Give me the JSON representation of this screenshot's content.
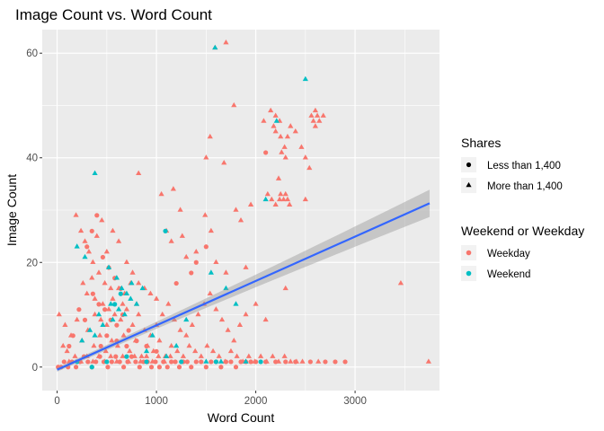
{
  "chart_data": {
    "type": "scatter",
    "title": "Image Count vs. Word Count",
    "xlabel": "Word Count",
    "ylabel": "Image Count",
    "xlim": [
      -150,
      3850
    ],
    "ylim": [
      -4.5,
      64.5
    ],
    "x_ticks": [
      0,
      1000,
      2000,
      3000
    ],
    "y_ticks": [
      0,
      20,
      40,
      60
    ],
    "x_tick_labels": [
      "0",
      "1000",
      "2000",
      "3000"
    ],
    "y_tick_labels": [
      "0",
      "20",
      "40",
      "60"
    ],
    "grid": true,
    "legend_position": "right",
    "colors": {
      "Weekday": "#F8766D",
      "Weekend": "#00BFC4",
      "trend": "#3366FF",
      "band": "#999999",
      "panel": "#EBEBEB"
    },
    "legends": [
      {
        "title": "Shares",
        "entries": [
          {
            "label": "Less than 1,400",
            "shape": "circle"
          },
          {
            "label": "More than 1,400",
            "shape": "triangle"
          }
        ]
      },
      {
        "title": "Weekend or Weekday",
        "entries": [
          {
            "label": "Weekday",
            "color": "#F8766D"
          },
          {
            "label": "Weekend",
            "color": "#00BFC4"
          }
        ]
      }
    ],
    "trend_line": {
      "x": [
        0,
        3750
      ],
      "y": [
        -0.5,
        31.3
      ],
      "band_halfwidth": [
        0.4,
        2.6
      ]
    },
    "series": [
      {
        "name": "Weekday",
        "shares": "More than 1,400",
        "points": [
          [
            1700,
            62
          ],
          [
            1590,
            61
          ],
          [
            1780,
            50
          ],
          [
            2080,
            47
          ],
          [
            2150,
            49
          ],
          [
            2200,
            48
          ],
          [
            2240,
            47
          ],
          [
            2180,
            46
          ],
          [
            2250,
            44
          ],
          [
            2290,
            42
          ],
          [
            2320,
            44
          ],
          [
            2200,
            45
          ],
          [
            2560,
            48
          ],
          [
            2580,
            47
          ],
          [
            2600,
            49
          ],
          [
            2620,
            48
          ],
          [
            2640,
            47
          ],
          [
            2680,
            48
          ],
          [
            2600,
            46
          ],
          [
            2350,
            46
          ],
          [
            2400,
            45
          ],
          [
            2300,
            40
          ],
          [
            2260,
            41
          ],
          [
            2230,
            36
          ],
          [
            2540,
            38
          ],
          [
            2460,
            42
          ],
          [
            2500,
            40
          ],
          [
            1540,
            44
          ],
          [
            1500,
            40
          ],
          [
            1680,
            39
          ],
          [
            820,
            37
          ],
          [
            1050,
            33
          ],
          [
            1170,
            34
          ],
          [
            1490,
            29
          ],
          [
            1240,
            30
          ],
          [
            2240,
            32
          ],
          [
            2280,
            32
          ],
          [
            2300,
            33
          ],
          [
            2320,
            32
          ],
          [
            2160,
            32
          ],
          [
            2340,
            31
          ],
          [
            2200,
            31
          ],
          [
            2250,
            33
          ],
          [
            2120,
            33
          ],
          [
            1950,
            31
          ],
          [
            1800,
            30
          ],
          [
            1850,
            28
          ],
          [
            2500,
            32
          ],
          [
            1100,
            26
          ],
          [
            1150,
            24
          ],
          [
            1260,
            25
          ],
          [
            1550,
            26
          ],
          [
            1400,
            22
          ],
          [
            1300,
            21
          ],
          [
            1600,
            20
          ],
          [
            1700,
            18
          ],
          [
            1900,
            19
          ],
          [
            2300,
            15
          ],
          [
            3460,
            16
          ],
          [
            190,
            29
          ],
          [
            240,
            26
          ],
          [
            280,
            24
          ],
          [
            320,
            22
          ],
          [
            360,
            20
          ],
          [
            400,
            25
          ],
          [
            450,
            28
          ],
          [
            500,
            22
          ],
          [
            560,
            26
          ],
          [
            620,
            24
          ],
          [
            700,
            20
          ],
          [
            760,
            18
          ],
          [
            820,
            16
          ],
          [
            880,
            15
          ],
          [
            940,
            14
          ],
          [
            1000,
            13
          ],
          [
            420,
            18
          ],
          [
            540,
            15
          ],
          [
            660,
            12
          ],
          [
            260,
            16
          ],
          [
            300,
            14
          ],
          [
            380,
            13
          ],
          [
            460,
            12
          ],
          [
            520,
            11
          ],
          [
            580,
            10
          ],
          [
            640,
            9
          ],
          [
            700,
            11
          ],
          [
            760,
            8
          ],
          [
            820,
            10
          ],
          [
            880,
            7
          ],
          [
            940,
            6
          ],
          [
            1000,
            8
          ],
          [
            1060,
            10
          ],
          [
            1120,
            12
          ],
          [
            1180,
            9
          ],
          [
            1240,
            7
          ],
          [
            1300,
            6
          ],
          [
            1360,
            8
          ],
          [
            1420,
            10
          ],
          [
            1480,
            12
          ],
          [
            1540,
            14
          ],
          [
            1600,
            11
          ],
          [
            1660,
            9
          ],
          [
            1720,
            7
          ],
          [
            1780,
            5
          ],
          [
            1840,
            8
          ],
          [
            1900,
            10
          ],
          [
            2000,
            12
          ],
          [
            2100,
            9
          ],
          [
            250,
            5
          ],
          [
            310,
            7
          ],
          [
            370,
            4
          ],
          [
            430,
            6
          ],
          [
            490,
            3
          ],
          [
            550,
            5
          ],
          [
            610,
            4
          ],
          [
            670,
            6
          ],
          [
            730,
            3
          ],
          [
            790,
            5
          ],
          [
            850,
            2
          ],
          [
            910,
            4
          ],
          [
            970,
            3
          ],
          [
            1030,
            5
          ],
          [
            1090,
            2
          ],
          [
            1150,
            4
          ],
          [
            1210,
            3
          ],
          [
            1270,
            2
          ],
          [
            1330,
            4
          ],
          [
            1390,
            3
          ],
          [
            1450,
            2
          ],
          [
            1510,
            4
          ],
          [
            1570,
            3
          ],
          [
            1630,
            2
          ],
          [
            1690,
            1
          ],
          [
            1750,
            3
          ],
          [
            1810,
            2
          ],
          [
            1870,
            1
          ],
          [
            1930,
            2
          ],
          [
            1990,
            1
          ],
          [
            2050,
            2
          ],
          [
            2110,
            1
          ],
          [
            2170,
            2
          ],
          [
            2230,
            1
          ],
          [
            2290,
            2
          ],
          [
            2350,
            1
          ],
          [
            2410,
            1
          ],
          [
            2470,
            1
          ],
          [
            120,
            1
          ],
          [
            180,
            2
          ],
          [
            240,
            1
          ],
          [
            300,
            2
          ],
          [
            360,
            1
          ],
          [
            420,
            2
          ],
          [
            480,
            1
          ],
          [
            540,
            2
          ],
          [
            600,
            1
          ],
          [
            660,
            2
          ],
          [
            720,
            1
          ],
          [
            780,
            2
          ],
          [
            840,
            1
          ],
          [
            900,
            2
          ],
          [
            960,
            1
          ],
          [
            1020,
            2
          ],
          [
            1080,
            1
          ],
          [
            1140,
            2
          ],
          [
            20,
            10
          ],
          [
            80,
            8
          ],
          [
            140,
            6
          ],
          [
            200,
            9
          ],
          [
            60,
            4
          ],
          [
            100,
            3
          ],
          [
            3740,
            1
          ],
          [
            2630,
            1
          ],
          [
            380,
            10
          ],
          [
            440,
            9
          ],
          [
            500,
            8
          ],
          [
            620,
            15
          ],
          [
            680,
            14
          ],
          [
            740,
            16
          ],
          [
            800,
            12
          ],
          [
            560,
            13
          ],
          [
            480,
            16
          ],
          [
            350,
            17
          ]
        ]
      },
      {
        "name": "Weekday",
        "shares": "Less than 1,400",
        "points": [
          [
            10,
            0
          ],
          [
            40,
            0
          ],
          [
            70,
            1
          ],
          [
            110,
            0
          ],
          [
            150,
            1
          ],
          [
            190,
            0
          ],
          [
            230,
            1
          ],
          [
            270,
            2
          ],
          [
            310,
            1
          ],
          [
            350,
            0
          ],
          [
            390,
            1
          ],
          [
            430,
            2
          ],
          [
            470,
            1
          ],
          [
            510,
            0
          ],
          [
            550,
            1
          ],
          [
            590,
            2
          ],
          [
            630,
            1
          ],
          [
            670,
            0
          ],
          [
            710,
            1
          ],
          [
            750,
            2
          ],
          [
            790,
            1
          ],
          [
            830,
            0
          ],
          [
            870,
            1
          ],
          [
            910,
            1
          ],
          [
            950,
            0
          ],
          [
            990,
            1
          ],
          [
            1030,
            0
          ],
          [
            1070,
            1
          ],
          [
            1110,
            0
          ],
          [
            1150,
            1
          ],
          [
            1190,
            1
          ],
          [
            1230,
            0
          ],
          [
            1270,
            1
          ],
          [
            1310,
            1
          ],
          [
            1350,
            0
          ],
          [
            1400,
            1
          ],
          [
            1450,
            1
          ],
          [
            1500,
            0
          ],
          [
            1550,
            1
          ],
          [
            1600,
            1
          ],
          [
            1650,
            0
          ],
          [
            1700,
            1
          ],
          [
            1750,
            1
          ],
          [
            1800,
            0
          ],
          [
            1850,
            1
          ],
          [
            1900,
            1
          ],
          [
            1950,
            1
          ],
          [
            2000,
            1
          ],
          [
            2100,
            1
          ],
          [
            2200,
            1
          ],
          [
            2300,
            1
          ],
          [
            2400,
            1
          ],
          [
            2550,
            1
          ],
          [
            2700,
            1
          ],
          [
            2800,
            1
          ],
          [
            2900,
            1
          ],
          [
            400,
            29
          ],
          [
            350,
            26
          ],
          [
            300,
            23
          ],
          [
            460,
            21
          ],
          [
            520,
            19
          ],
          [
            580,
            17
          ],
          [
            640,
            15
          ],
          [
            360,
            14
          ],
          [
            420,
            12
          ],
          [
            480,
            11
          ],
          [
            540,
            9
          ],
          [
            600,
            8
          ],
          [
            660,
            10
          ],
          [
            720,
            7
          ],
          [
            280,
            9
          ],
          [
            220,
            11
          ],
          [
            160,
            6
          ],
          [
            120,
            4
          ],
          [
            2100,
            41
          ],
          [
            1500,
            23
          ],
          [
            1400,
            20
          ],
          [
            1350,
            18
          ],
          [
            1200,
            16
          ],
          [
            800,
            5
          ],
          [
            900,
            4
          ],
          [
            1000,
            3
          ],
          [
            700,
            4
          ],
          [
            600,
            5
          ],
          [
            500,
            6
          ],
          [
            440,
            4
          ]
        ]
      },
      {
        "name": "Weekend",
        "shares": "More than 1,400",
        "points": [
          [
            1590,
            61
          ],
          [
            2500,
            55
          ],
          [
            2210,
            47
          ],
          [
            380,
            37
          ],
          [
            2100,
            32
          ],
          [
            200,
            23
          ],
          [
            280,
            21
          ],
          [
            520,
            19
          ],
          [
            600,
            17
          ],
          [
            650,
            15
          ],
          [
            700,
            14
          ],
          [
            540,
            12
          ],
          [
            620,
            11
          ],
          [
            680,
            10
          ],
          [
            560,
            9
          ],
          [
            740,
            13
          ],
          [
            800,
            12
          ],
          [
            460,
            8
          ],
          [
            380,
            6
          ],
          [
            1550,
            18
          ],
          [
            1700,
            15
          ],
          [
            1300,
            9
          ],
          [
            1800,
            12
          ],
          [
            250,
            5
          ],
          [
            900,
            3
          ],
          [
            1100,
            2
          ],
          [
            1500,
            1
          ],
          [
            1650,
            1
          ],
          [
            1900,
            1
          ],
          [
            330,
            7
          ],
          [
            420,
            10
          ],
          [
            750,
            16
          ],
          [
            860,
            15
          ],
          [
            960,
            6
          ],
          [
            1200,
            4
          ]
        ]
      },
      {
        "name": "Weekend",
        "shares": "Less than 1,400",
        "points": [
          [
            1090,
            26
          ],
          [
            200,
            1
          ],
          [
            350,
            0
          ],
          [
            500,
            1
          ],
          [
            700,
            2
          ],
          [
            900,
            1
          ],
          [
            1250,
            1
          ],
          [
            1600,
            1
          ],
          [
            2050,
            1
          ],
          [
            640,
            14
          ],
          [
            580,
            12
          ]
        ]
      }
    ]
  }
}
